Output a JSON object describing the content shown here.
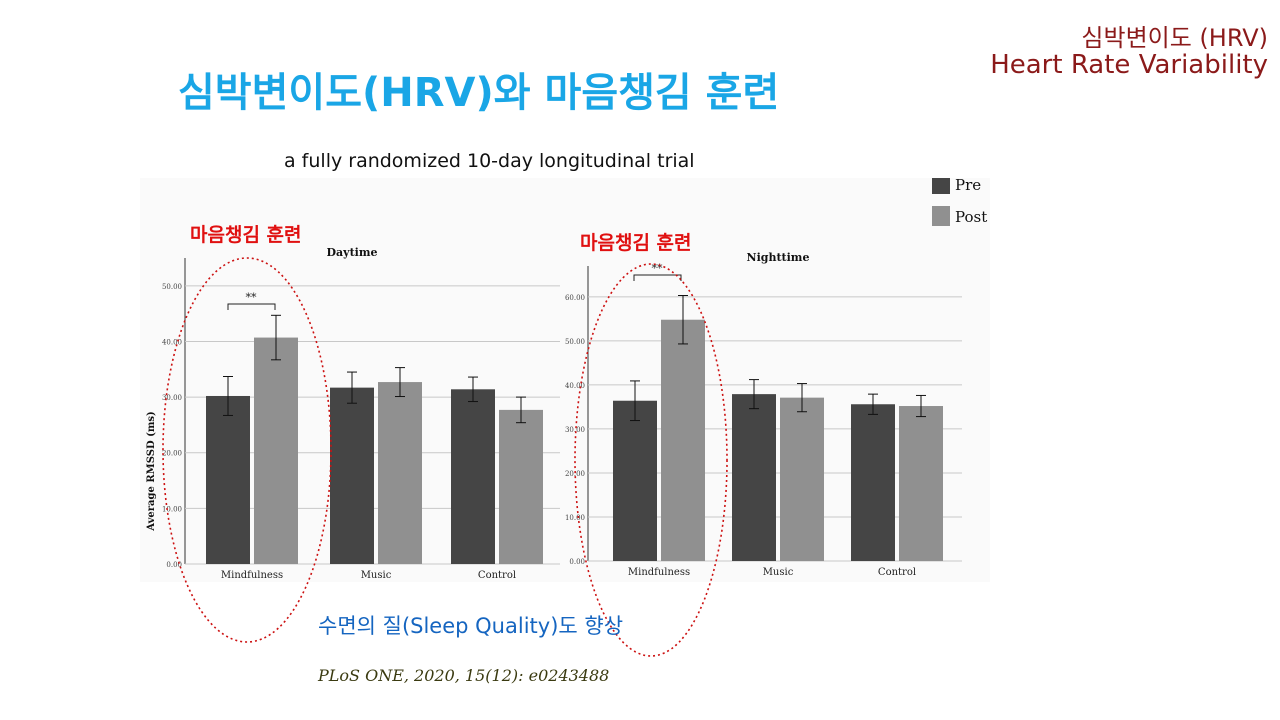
{
  "corner": {
    "title_ko": "심박변이도 (HRV)",
    "title_en": "Heart Rate Variability"
  },
  "title": "심박변이도(HRV)와 마음챙김 훈련",
  "subtitle": "a fully randomized 10-day longitudinal trial",
  "legend": {
    "pre": "Pre",
    "post": "Post"
  },
  "annotations": {
    "left": "마음챙김 훈련",
    "right": "마음챙김 훈련",
    "significance": "**"
  },
  "sleep_note": "수면의 질(Sleep Quality)도 향상",
  "citation": "PLoS ONE, 2020, 15(12): e0243488",
  "colors": {
    "pre": "#454545",
    "post": "#909090",
    "accent_red": "#e01010",
    "title_blue": "#1aa6e6"
  },
  "chart_data": [
    {
      "type": "bar",
      "title": "Daytime",
      "ylabel": "Average RMSSD (ms)",
      "categories": [
        "Mindfulness",
        "Music",
        "Control"
      ],
      "ylim": [
        0,
        55
      ],
      "yticks": [
        "0.00",
        "10.00",
        "20.00",
        "30.00",
        "40.00",
        "50.00"
      ],
      "ytick_values": [
        0,
        10,
        20,
        30,
        40,
        50
      ],
      "series": [
        {
          "name": "Pre",
          "values": [
            30.2,
            31.7,
            31.4
          ],
          "errors": [
            3.5,
            2.8,
            2.2
          ]
        },
        {
          "name": "Post",
          "values": [
            40.7,
            32.7,
            27.7
          ],
          "errors": [
            4.0,
            2.6,
            2.3
          ]
        }
      ],
      "grid": true
    },
    {
      "type": "bar",
      "title": "Nighttime",
      "ylabel": "",
      "categories": [
        "Mindfulness",
        "Music",
        "Control"
      ],
      "ylim": [
        0,
        67
      ],
      "yticks": [
        "0.00",
        "10.00",
        "20.00",
        "30.00",
        "40.00",
        "50.00",
        "60.00"
      ],
      "ytick_values": [
        0,
        10,
        20,
        30,
        40,
        50,
        60
      ],
      "series": [
        {
          "name": "Pre",
          "values": [
            36.4,
            37.9,
            35.6
          ],
          "errors": [
            4.5,
            3.3,
            2.3
          ]
        },
        {
          "name": "Post",
          "values": [
            54.8,
            37.1,
            35.2
          ],
          "errors": [
            5.5,
            3.2,
            2.4
          ]
        }
      ],
      "grid": true
    }
  ]
}
